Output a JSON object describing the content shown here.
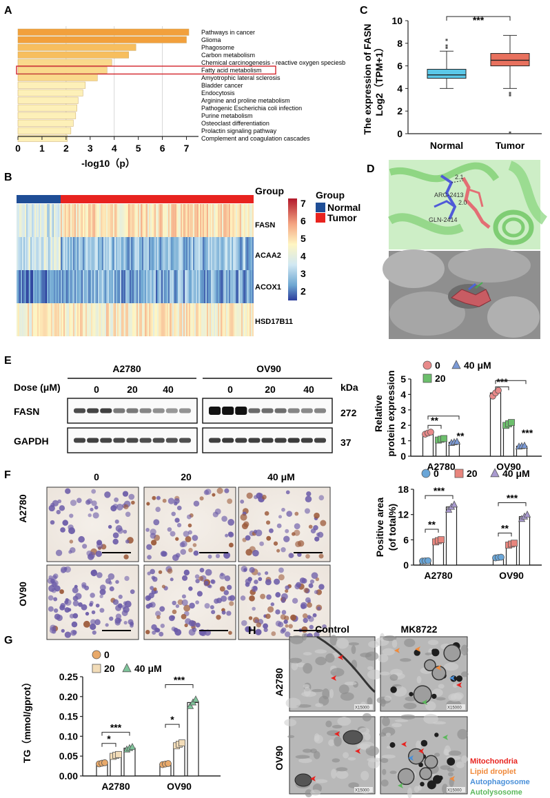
{
  "panels": {
    "A": {
      "label": "A",
      "chart_data": {
        "type": "bar",
        "orientation": "horizontal",
        "categories": [
          "Pathways in cancer",
          "Glioma",
          "Phagosome",
          "Carbon metabolism",
          "Chemical carcinogenesis - reactive oxygen speciesb",
          "Fatty acid metabolism",
          "Amyotrophic lateral sclerosis",
          "Bladder cancer",
          "Endocytosis",
          "Arginine and proline metabolism",
          "Pathogenic Escherichia coli infection",
          "Purine metabolism",
          "Osteoclast differentiation",
          "Prolactin signaling pathway",
          "Complement and coagulation cascades"
        ],
        "values": [
          7.1,
          7.0,
          4.9,
          4.6,
          3.9,
          3.7,
          3.3,
          2.8,
          2.7,
          2.5,
          2.45,
          2.4,
          2.3,
          2.2,
          2.05
        ],
        "highlighted": "Fatty acid metabolism",
        "xlabel": "-log10（p）",
        "xlim": [
          0,
          7.5
        ],
        "xticks": [
          "0",
          "1",
          "2",
          "3",
          "4",
          "5",
          "6",
          "7"
        ]
      }
    },
    "B": {
      "label": "B",
      "legend_title": "Group",
      "scale_title": "Group",
      "groups": [
        "Normal",
        "Tumor"
      ],
      "group_colors": [
        "#1f4e96",
        "#e8231f"
      ],
      "genes": [
        "FASN",
        "ACAA2",
        "ACOX1",
        "HSD17B11"
      ],
      "scale_ticks": [
        "7",
        "6",
        "5",
        "4",
        "3",
        "2"
      ]
    },
    "C": {
      "label": "C",
      "chart_data": {
        "type": "box",
        "categories": [
          "Normal",
          "Tumor"
        ],
        "boxes": [
          {
            "name": "Normal",
            "q1": 4.9,
            "median": 5.2,
            "q3": 5.7,
            "whisker_low": 4.0,
            "whisker_high": 7.3,
            "outliers": [
              8.3,
              7.8,
              7.6
            ],
            "color": "#5bc8e8"
          },
          {
            "name": "Tumor",
            "q1": 6.0,
            "median": 6.5,
            "q3": 7.1,
            "whisker_low": 4.0,
            "whisker_high": 8.7,
            "outliers": [
              3.6,
              3.4,
              0.1
            ],
            "color": "#e8715e"
          }
        ],
        "ylabel_line1": "The expression of FASN",
        "ylabel_line2": "Log2（TPM+1）",
        "ylim": [
          0,
          10
        ],
        "yticks": [
          "0",
          "2",
          "4",
          "6",
          "8",
          "10"
        ],
        "significance": "***"
      }
    },
    "D": {
      "label": "D",
      "residues": [
        "ARG-2413",
        "GLN-2414",
        "2.1",
        "2.0"
      ]
    },
    "E": {
      "label": "E",
      "cell_lines": [
        "A2780",
        "OV90"
      ],
      "dose_label": "Dose (μM)",
      "doses": [
        "0",
        "20",
        "40"
      ],
      "kda_label": "kDa",
      "proteins": [
        {
          "name": "FASN",
          "kda": "272"
        },
        {
          "name": "GAPDH",
          "kda": "37"
        }
      ],
      "chart_data": {
        "type": "bar",
        "categories": [
          "A2780",
          "OV90"
        ],
        "series": [
          {
            "name": "0",
            "values": [
              1.5,
              4.1
            ],
            "color": "#e88a8a",
            "marker": "circle"
          },
          {
            "name": "20",
            "values": [
              1.1,
              2.1
            ],
            "color": "#6cbf6c",
            "marker": "square"
          },
          {
            "name": "40 μM",
            "values": [
              0.9,
              0.65
            ],
            "color": "#7b9ad6",
            "marker": "triangle"
          }
        ],
        "ylabel_line1": "Relative",
        "ylabel_line2": "protein expression",
        "ylim": [
          0,
          5
        ],
        "yticks": [
          "0",
          "1",
          "2",
          "3",
          "4",
          "5"
        ],
        "significance": {
          "A2780": [
            "**",
            "**"
          ],
          "OV90": [
            "***",
            "***"
          ]
        }
      }
    },
    "F": {
      "label": "F",
      "doses": [
        "0",
        "20",
        "40  μM"
      ],
      "rows": [
        "A2780",
        "OV90"
      ],
      "chart_data": {
        "type": "bar",
        "categories": [
          "A2780",
          "OV90"
        ],
        "series": [
          {
            "name": "0",
            "values": [
              1.0,
              1.8
            ],
            "color": "#6aa6d8",
            "marker": "circle"
          },
          {
            "name": "20",
            "values": [
              5.8,
              5.0
            ],
            "color": "#e8857d",
            "marker": "square"
          },
          {
            "name": "40 μM",
            "values": [
              13.8,
              11.5
            ],
            "color": "#a99ad0",
            "marker": "triangle"
          }
        ],
        "ylabel_line1": "Positive area",
        "ylabel_line2": "(of total%)",
        "ylim": [
          0,
          18
        ],
        "yticks": [
          "0",
          "6",
          "12",
          "18"
        ],
        "significance": {
          "A2780": [
            "**",
            "***"
          ],
          "OV90": [
            "**",
            "***"
          ]
        }
      }
    },
    "G": {
      "label": "G",
      "chart_data": {
        "type": "bar",
        "categories": [
          "A2780",
          "OV90"
        ],
        "series": [
          {
            "name": "0",
            "values": [
              0.032,
              0.03
            ],
            "color": "#e8a96a",
            "marker": "circle"
          },
          {
            "name": "20",
            "values": [
              0.052,
              0.08
            ],
            "color": "#f2dcb8",
            "marker": "square"
          },
          {
            "name": "40 μM",
            "values": [
              0.07,
              0.185
            ],
            "color": "#7ec49a",
            "marker": "triangle"
          }
        ],
        "ylabel": "TG（mmol/gprot）",
        "ylim": [
          0,
          0.25
        ],
        "yticks": [
          "0.00",
          "0.05",
          "0.10",
          "0.15",
          "0.20",
          "0.25"
        ],
        "significance": {
          "A2780": [
            "*",
            "***"
          ],
          "OV90": [
            "*",
            "***"
          ]
        }
      }
    },
    "H": {
      "label": "H",
      "columns": [
        "Control",
        "MK8722"
      ],
      "rows": [
        "A2780",
        "OV90"
      ],
      "magnification": "X15000",
      "legend": [
        {
          "name": "Mitochondria",
          "color": "#e8231f"
        },
        {
          "name": "Lipid droplet",
          "color": "#f08a3c"
        },
        {
          "name": "Autophagosome",
          "color": "#4a90d9"
        },
        {
          "name": "Autolysosome",
          "color": "#5cb85c"
        }
      ]
    }
  }
}
